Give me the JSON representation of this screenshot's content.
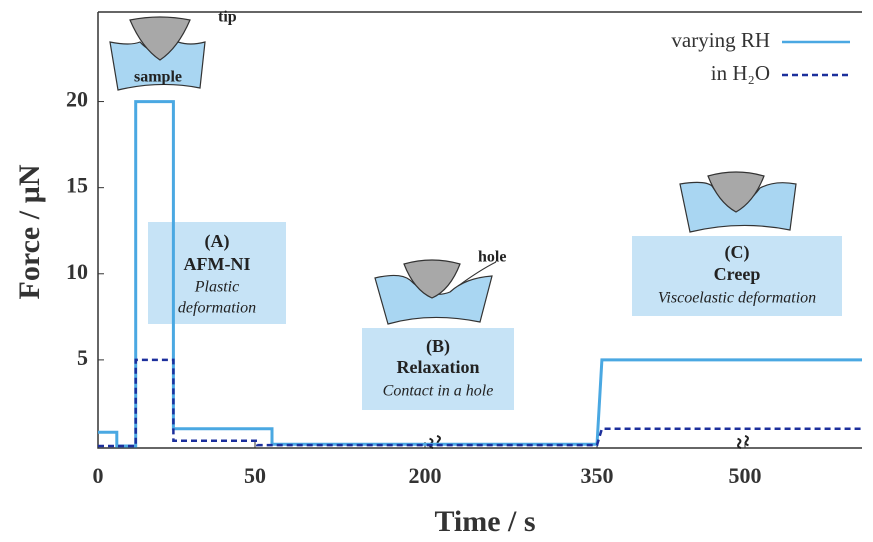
{
  "chart_data": {
    "type": "line",
    "x_label": "Time / s",
    "y_label": "Force / µN",
    "xlim": [
      0,
      618
    ],
    "ylim": [
      0,
      25.2
    ],
    "xticks": [
      0,
      50,
      200,
      350,
      500
    ],
    "yticks": [
      5,
      10,
      15,
      20
    ],
    "grid": false,
    "legend": "upper right",
    "series": [
      {
        "name": "varying RH",
        "color": "#4aa8e2",
        "style": "solid",
        "x": [
          0,
          6,
          6,
          12,
          12,
          24,
          24,
          65,
          65,
          350,
          355,
          618
        ],
        "values": [
          0.8,
          0.8,
          0,
          0,
          20,
          20,
          1,
          1,
          0.1,
          0.1,
          5,
          5
        ]
      },
      {
        "name": "in H₂O",
        "color": "#1c2f9c",
        "style": "dashed",
        "x": [
          0,
          12,
          12,
          24,
          24,
          52,
          52,
          350,
          355,
          618
        ],
        "values": [
          0,
          0,
          5,
          5,
          0.3,
          0.3,
          0.05,
          0.05,
          1,
          1
        ]
      }
    ],
    "annotations": {
      "A": {
        "tag": "(A)",
        "title": "AFM-NI",
        "note": [
          "Plastic",
          "deformation"
        ]
      },
      "B": {
        "tag": "(B)",
        "title": "Relaxation",
        "note": [
          "Contact in a hole"
        ]
      },
      "C": {
        "tag": "(C)",
        "title": "Creep",
        "note": [
          "Viscoelastic deformation"
        ]
      }
    },
    "labels": {
      "tip": "tip",
      "sample": "sample",
      "hole": "hole"
    }
  }
}
